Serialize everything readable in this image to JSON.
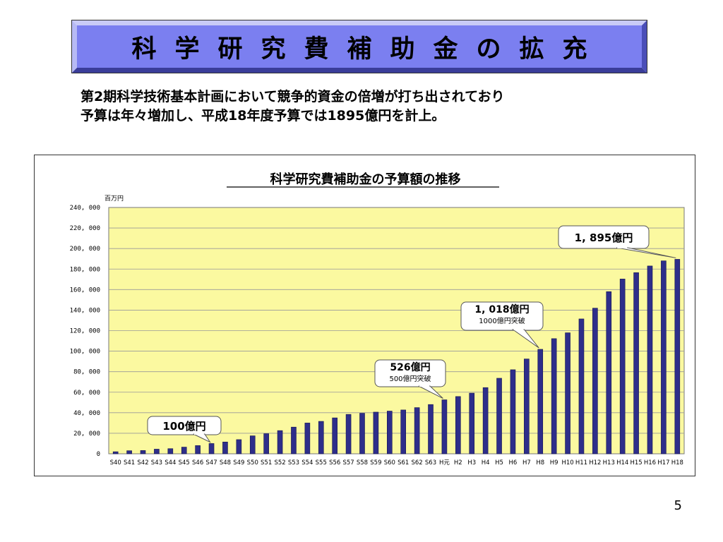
{
  "slide": {
    "title": "科学研究費補助金の拡充",
    "subtitle_line1": "第2期科学技術基本計画において競争的資金の倍増が打ち出されており",
    "subtitle_line2": "予算は年々増加し、平成18年度予算では1895億円を計上。",
    "page_number": "5"
  },
  "colors": {
    "title_fill": "#7b7ff0",
    "plot_bg": "#fbf9a0",
    "bar": "#2e2e8a",
    "bar_edge": "#15154f",
    "grid": "#999999"
  },
  "chart_data": {
    "type": "bar",
    "title": "科学研究費補助金の予算額の推移",
    "unit_label": "百万円",
    "xlabel": "",
    "ylabel": "",
    "ylim": [
      0,
      240000
    ],
    "yticks": [
      "0",
      "20, 000",
      "40, 000",
      "60, 000",
      "80, 000",
      "100, 000",
      "120, 000",
      "140, 000",
      "160, 000",
      "180, 000",
      "200, 000",
      "220, 000",
      "240, 000"
    ],
    "grid": true,
    "categories": [
      "S40",
      "S41",
      "S42",
      "S43",
      "S44",
      "S45",
      "S46",
      "S47",
      "S48",
      "S49",
      "S50",
      "S51",
      "S52",
      "S53",
      "S54",
      "S55",
      "S56",
      "S57",
      "S58",
      "S59",
      "S60",
      "S61",
      "S62",
      "S63",
      "H元",
      "H2",
      "H3",
      "H4",
      "H5",
      "H6",
      "H7",
      "H8",
      "H9",
      "H10",
      "H11",
      "H12",
      "H13",
      "H14",
      "H15",
      "H16",
      "H17",
      "H18"
    ],
    "series": [
      {
        "values": [
          2000,
          3000,
          3200,
          4500,
          5000,
          6500,
          8000,
          10000,
          11500,
          13800,
          17500,
          19600,
          22600,
          26000,
          30000,
          31600,
          35000,
          38400,
          39500,
          40600,
          41600,
          42700,
          45000,
          48000,
          52600,
          55800,
          59100,
          64500,
          73600,
          81900,
          92400,
          101800,
          112200,
          117900,
          131400,
          141900,
          158000,
          170300,
          176500,
          183000,
          188000,
          189500
        ]
      }
    ],
    "annotations": [
      {
        "label": "100億円",
        "sub": "",
        "category": "S47"
      },
      {
        "label": "526億円",
        "sub": "500億円突破",
        "category": "H元"
      },
      {
        "label": "1, 018億円",
        "sub": "1000億円突破",
        "category": "H8"
      },
      {
        "label": "1, 895億円",
        "sub": "",
        "category": "H18"
      }
    ]
  }
}
